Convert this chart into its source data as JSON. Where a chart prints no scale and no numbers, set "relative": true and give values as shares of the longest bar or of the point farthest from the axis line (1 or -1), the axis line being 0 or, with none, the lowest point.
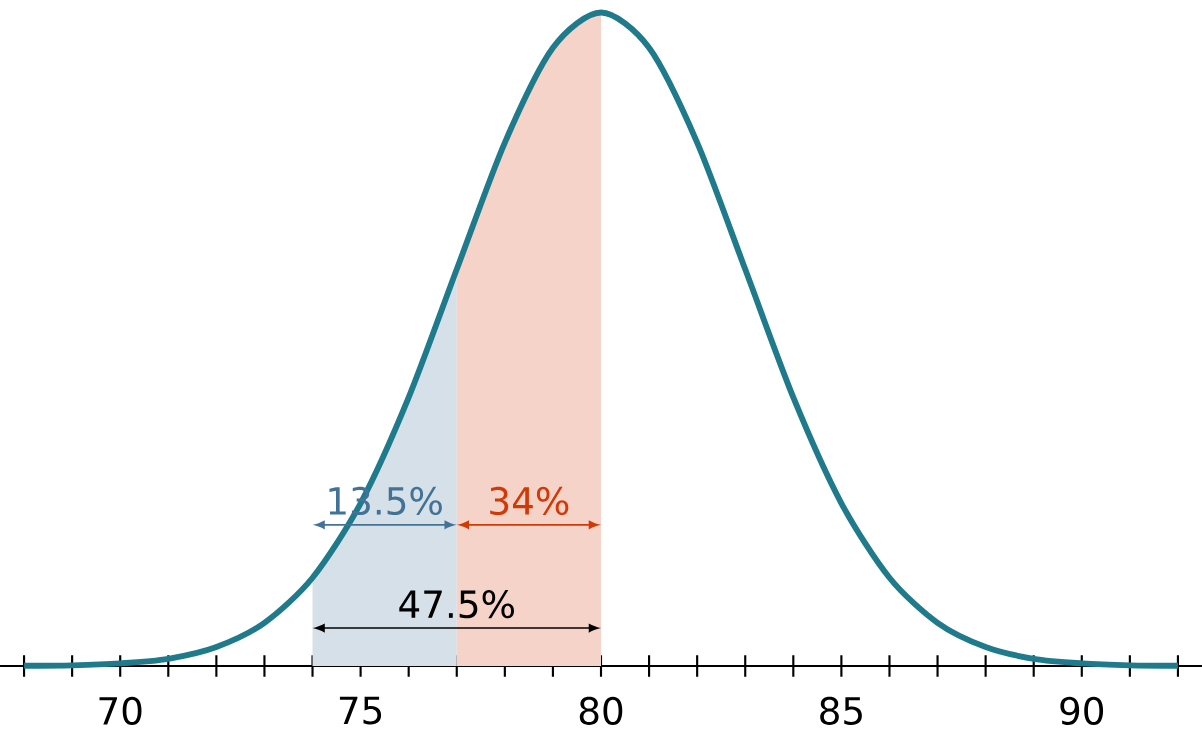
{
  "chart_data": {
    "type": "line",
    "relative": true,
    "x": [
      68,
      69,
      70,
      71,
      72,
      73,
      74,
      75,
      76,
      77,
      78,
      79,
      80,
      81,
      82,
      83,
      84,
      85,
      86,
      87,
      88,
      89,
      90,
      91,
      92
    ],
    "series": [
      {
        "type": "area",
        "color": "#d5e0e8",
        "x": [
          74,
          75,
          76,
          77
        ],
        "values": [
          0.135,
          0.249,
          0.411,
          0.607
        ]
      },
      {
        "type": "area",
        "color": "#f5d3c8",
        "x": [
          77,
          78,
          79,
          80
        ],
        "values": [
          0.607,
          0.801,
          0.946,
          1
        ]
      },
      {
        "color": "#1f7a8c",
        "values": [
          0.0003,
          0.001,
          0.004,
          0.011,
          0.029,
          0.066,
          0.135,
          0.249,
          0.411,
          0.607,
          0.801,
          0.946,
          1,
          0.946,
          0.801,
          0.607,
          0.411,
          0.249,
          0.135,
          0.066,
          0.029,
          0.011,
          0.004,
          0.001,
          0.0003
        ]
      }
    ],
    "xlim": [
      67.5,
      92.5
    ],
    "xticks": [
      {
        "value": 68,
        "label": null
      },
      {
        "value": 69,
        "label": null
      },
      70,
      {
        "value": 71,
        "label": null
      },
      {
        "value": 72,
        "label": null
      },
      {
        "value": 73,
        "label": null
      },
      {
        "value": 74,
        "label": null
      },
      75,
      {
        "value": 76,
        "label": null
      },
      {
        "value": 77,
        "label": null
      },
      {
        "value": 78,
        "label": null
      },
      {
        "value": 79,
        "label": null
      },
      80,
      {
        "value": 81,
        "label": null
      },
      {
        "value": 82,
        "label": null
      },
      {
        "value": 83,
        "label": null
      },
      {
        "value": 84,
        "label": null
      },
      85,
      {
        "value": 86,
        "label": null
      },
      {
        "value": 87,
        "label": null
      },
      {
        "value": 88,
        "label": null
      },
      {
        "value": 89,
        "label": null
      },
      90,
      {
        "value": 91,
        "label": null
      },
      {
        "value": 92,
        "label": null
      }
    ],
    "annotations": [
      "13.5%",
      "34%",
      {
        "text": "47.5%",
        "x": 77,
        "y": 0.058
      }
    ],
    "grid": false,
    "marker": "none",
    "line_style": "solid"
  }
}
